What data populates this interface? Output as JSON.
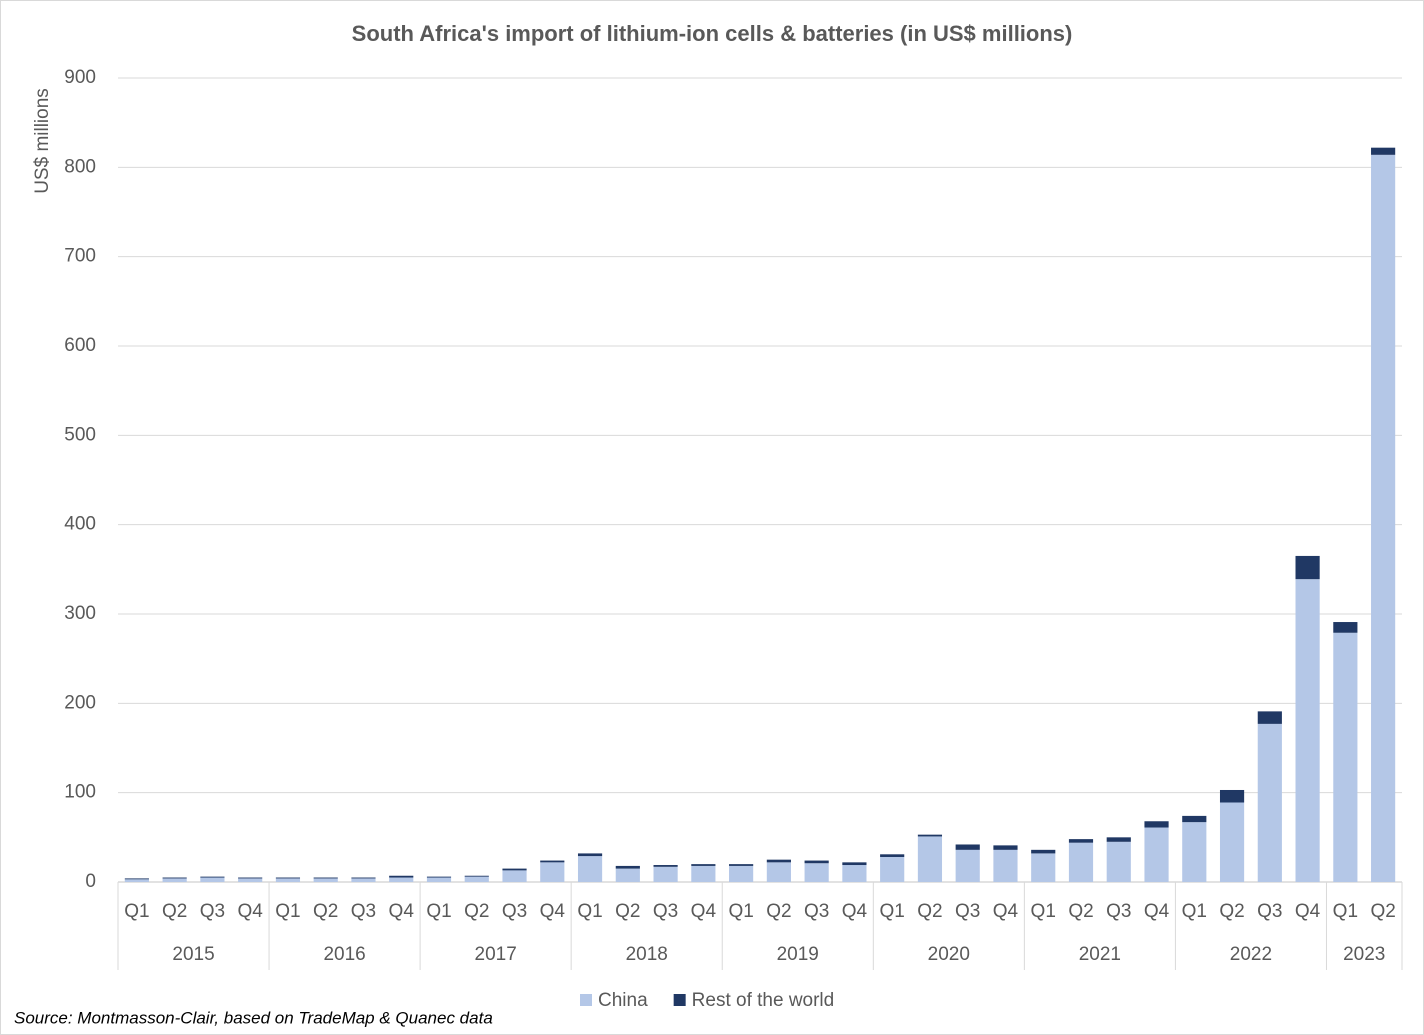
{
  "chart_data": {
    "type": "bar",
    "stacked": true,
    "title": "South Africa's import of lithium-ion cells & batteries (in US$ millions)",
    "y_label": "US$ millions",
    "source": "Source: Montmasson-Clair, based on TradeMap & Quanec data",
    "category_groups": [
      {
        "label": "2015",
        "categories": [
          "Q1",
          "Q2",
          "Q3",
          "Q4"
        ]
      },
      {
        "label": "2016",
        "categories": [
          "Q1",
          "Q2",
          "Q3",
          "Q4"
        ]
      },
      {
        "label": "2017",
        "categories": [
          "Q1",
          "Q2",
          "Q3",
          "Q4"
        ]
      },
      {
        "label": "2018",
        "categories": [
          "Q1",
          "Q2",
          "Q3",
          "Q4"
        ]
      },
      {
        "label": "2019",
        "categories": [
          "Q1",
          "Q2",
          "Q3",
          "Q4"
        ]
      },
      {
        "label": "2020",
        "categories": [
          "Q1",
          "Q2",
          "Q3",
          "Q4"
        ]
      },
      {
        "label": "2021",
        "categories": [
          "Q1",
          "Q2",
          "Q3",
          "Q4"
        ]
      },
      {
        "label": "2022",
        "categories": [
          "Q1",
          "Q2",
          "Q3",
          "Q4"
        ]
      },
      {
        "label": "2023",
        "categories": [
          "Q1",
          "Q2"
        ]
      }
    ],
    "series": [
      {
        "name": "China",
        "color": "#b4c7e7",
        "values": [
          3,
          4,
          5,
          4,
          4,
          4,
          4,
          5,
          5,
          6,
          13,
          22,
          29,
          15,
          17,
          18,
          18,
          22,
          21,
          19,
          28,
          51,
          36,
          36,
          32,
          44,
          45,
          61,
          67,
          89,
          177,
          339,
          279,
          814
        ]
      },
      {
        "name": "Rest of the world",
        "color": "#203864",
        "values": [
          1,
          1,
          1,
          1,
          1,
          1,
          1,
          2,
          1,
          1,
          2,
          2,
          3,
          3,
          2,
          2,
          2,
          3,
          3,
          3,
          3,
          2,
          6,
          5,
          4,
          4,
          5,
          7,
          7,
          14,
          14,
          26,
          12,
          8
        ]
      }
    ],
    "ylim": [
      0,
      900
    ],
    "yticks": [
      0,
      100,
      200,
      300,
      400,
      500,
      600,
      700,
      800,
      900
    ],
    "grid": true,
    "legend": "bottom"
  }
}
